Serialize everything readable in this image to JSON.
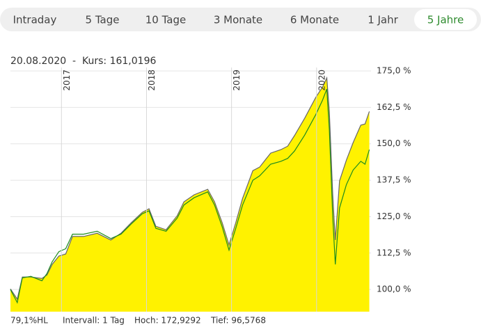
{
  "tabs": [
    {
      "label": "Intraday",
      "active": false
    },
    {
      "label": "5 Tage",
      "active": false
    },
    {
      "label": "10 Tage",
      "active": false
    },
    {
      "label": "3 Monate",
      "active": false
    },
    {
      "label": "6 Monate",
      "active": false
    },
    {
      "label": "1 Jahr",
      "active": false
    },
    {
      "label": "5 Jahre",
      "active": true
    }
  ],
  "chart_data": {
    "type": "line",
    "info": "20.08.2020  -  Kurs: 161,0196",
    "x": [
      2016.4,
      2016.48,
      2016.54,
      2016.64,
      2016.77,
      2016.83,
      2016.89,
      2016.97,
      2017.05,
      2017.13,
      2017.26,
      2017.42,
      2017.58,
      2017.7,
      2017.82,
      2017.95,
      2018.03,
      2018.11,
      2018.23,
      2018.36,
      2018.44,
      2018.56,
      2018.72,
      2018.8,
      2018.89,
      2018.97,
      2019.05,
      2019.13,
      2019.25,
      2019.33,
      2019.46,
      2019.58,
      2019.66,
      2019.74,
      2019.86,
      2019.99,
      2020.07,
      2020.12,
      2020.15,
      2020.19,
      2020.22,
      2020.27,
      2020.35,
      2020.43,
      2020.52,
      2020.57,
      2020.62
    ],
    "series": [
      {
        "color": "#666666",
        "fill": "#fff200",
        "values": [
          100.2,
          96.7,
          104.3,
          104.3,
          103.8,
          105.0,
          108.6,
          111.5,
          112.2,
          118.2,
          118.2,
          119.3,
          117.0,
          119.3,
          122.9,
          126.5,
          127.7,
          121.7,
          120.5,
          125.3,
          130.1,
          132.5,
          134.4,
          130.1,
          122.9,
          115.3,
          122.9,
          131.3,
          140.8,
          142.0,
          146.8,
          148.0,
          149.2,
          152.8,
          158.8,
          165.9,
          169.5,
          172.6,
          161.1,
          132.5,
          117.0,
          137.3,
          144.4,
          150.4,
          156.4,
          156.8,
          161.1
        ]
      },
      {
        "color": "#1e8c1e",
        "values": [
          100.0,
          95.5,
          104.0,
          104.5,
          103.0,
          105.5,
          109.5,
          113.0,
          114.0,
          119.0,
          119.0,
          120.0,
          117.5,
          119.0,
          122.5,
          126.0,
          127.0,
          121.0,
          120.0,
          124.5,
          129.0,
          131.5,
          133.5,
          129.0,
          121.5,
          113.5,
          121.0,
          129.0,
          137.5,
          139.0,
          143.0,
          144.0,
          145.0,
          147.5,
          153.0,
          160.0,
          165.0,
          168.8,
          155.0,
          125.0,
          108.6,
          128.0,
          136.0,
          141.0,
          144.0,
          143.0,
          148.0
        ]
      }
    ],
    "xlim": [
      2016.4,
      2020.64
    ],
    "xticks": [
      2017,
      2018,
      2019,
      2020
    ],
    "ylim": [
      92.4,
      175
    ],
    "yticks": [
      {
        "value": 100,
        "label": "100,0 %"
      },
      {
        "value": 112.5,
        "label": "112,5 %"
      },
      {
        "value": 125,
        "label": "125,0 %"
      },
      {
        "value": 137.5,
        "label": "137,5 %"
      },
      {
        "value": 150,
        "label": "150,0 %"
      },
      {
        "value": 162.5,
        "label": "162,5 %"
      },
      {
        "value": 175,
        "label": "175,0 %"
      }
    ],
    "grid": true,
    "footer": [
      "79,1%HL",
      "Intervall: 1 Tag",
      "Hoch: 172,9292",
      "Tief: 96,5768"
    ]
  }
}
